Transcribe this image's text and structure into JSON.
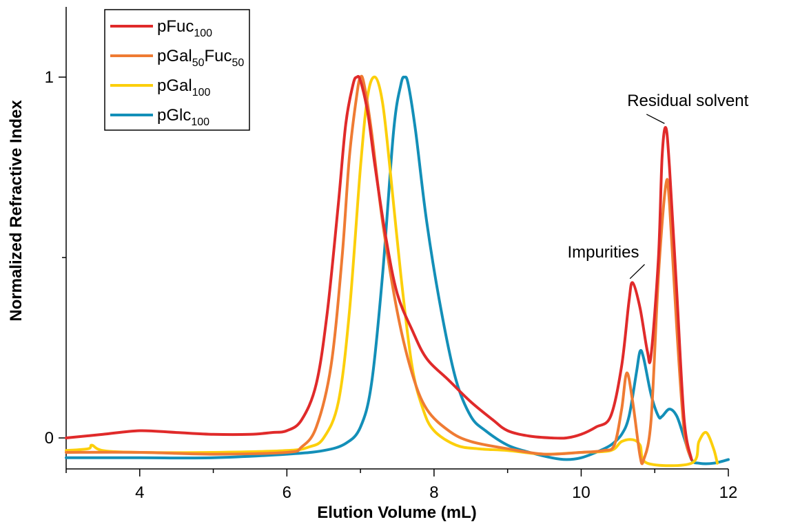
{
  "chart_data": {
    "type": "line",
    "title": "",
    "xlabel": "Elution Volume (mL)",
    "ylabel": "Normalized Refractive Index",
    "xlim": [
      3,
      12
    ],
    "ylim": [
      -0.07,
      1.2
    ],
    "xticks": [
      4,
      6,
      8,
      10,
      12
    ],
    "xtick_labels": [
      "4",
      "6",
      "8",
      "10",
      "12"
    ],
    "xminor": [
      3,
      5,
      7,
      9,
      11
    ],
    "yticks": [
      0,
      1
    ],
    "ytick_labels": [
      "0",
      "1"
    ],
    "yminor": [
      0.5
    ],
    "grid": false,
    "legend_position": "top-left",
    "series": [
      {
        "name": "pFuc100",
        "label_main": "pFuc",
        "label_sub": "100",
        "color": "#e02a2a",
        "points": [
          [
            3.0,
            0.0
          ],
          [
            3.5,
            0.01
          ],
          [
            4.0,
            0.02
          ],
          [
            4.5,
            0.015
          ],
          [
            5.0,
            0.01
          ],
          [
            5.5,
            0.01
          ],
          [
            5.8,
            0.015
          ],
          [
            6.0,
            0.02
          ],
          [
            6.2,
            0.05
          ],
          [
            6.4,
            0.15
          ],
          [
            6.55,
            0.35
          ],
          [
            6.7,
            0.65
          ],
          [
            6.8,
            0.87
          ],
          [
            6.9,
            0.98
          ],
          [
            6.95,
            1.0
          ],
          [
            7.0,
            0.99
          ],
          [
            7.1,
            0.9
          ],
          [
            7.2,
            0.75
          ],
          [
            7.35,
            0.55
          ],
          [
            7.5,
            0.4
          ],
          [
            7.7,
            0.3
          ],
          [
            7.9,
            0.22
          ],
          [
            8.2,
            0.16
          ],
          [
            8.5,
            0.1
          ],
          [
            8.8,
            0.05
          ],
          [
            9.0,
            0.02
          ],
          [
            9.3,
            0.005
          ],
          [
            9.6,
            0.0
          ],
          [
            9.8,
            0.0
          ],
          [
            10.0,
            0.01
          ],
          [
            10.2,
            0.03
          ],
          [
            10.4,
            0.06
          ],
          [
            10.55,
            0.2
          ],
          [
            10.65,
            0.38
          ],
          [
            10.7,
            0.43
          ],
          [
            10.8,
            0.36
          ],
          [
            10.9,
            0.24
          ],
          [
            10.95,
            0.23
          ],
          [
            11.05,
            0.5
          ],
          [
            11.1,
            0.78
          ],
          [
            11.15,
            0.86
          ],
          [
            11.2,
            0.75
          ],
          [
            11.3,
            0.4
          ],
          [
            11.4,
            0.05
          ],
          [
            11.5,
            -0.06
          ]
        ]
      },
      {
        "name": "pGal50Fuc50",
        "label_main": "pGal",
        "label_sub": "50",
        "label_main2": "Fuc",
        "label_sub2": "50",
        "color": "#ef7b33",
        "points": [
          [
            3.0,
            -0.04
          ],
          [
            4.0,
            -0.04
          ],
          [
            5.0,
            -0.045
          ],
          [
            6.0,
            -0.04
          ],
          [
            6.2,
            -0.025
          ],
          [
            6.4,
            0.03
          ],
          [
            6.6,
            0.2
          ],
          [
            6.75,
            0.5
          ],
          [
            6.85,
            0.78
          ],
          [
            6.95,
            0.95
          ],
          [
            7.0,
            1.0
          ],
          [
            7.05,
            0.98
          ],
          [
            7.15,
            0.85
          ],
          [
            7.3,
            0.6
          ],
          [
            7.5,
            0.35
          ],
          [
            7.7,
            0.18
          ],
          [
            7.9,
            0.08
          ],
          [
            8.2,
            0.02
          ],
          [
            8.5,
            -0.01
          ],
          [
            9.0,
            -0.03
          ],
          [
            9.5,
            -0.045
          ],
          [
            10.0,
            -0.04
          ],
          [
            10.3,
            -0.035
          ],
          [
            10.45,
            -0.02
          ],
          [
            10.55,
            0.08
          ],
          [
            10.62,
            0.18
          ],
          [
            10.7,
            0.1
          ],
          [
            10.8,
            -0.05
          ],
          [
            10.85,
            -0.06
          ],
          [
            10.95,
            0.05
          ],
          [
            11.05,
            0.45
          ],
          [
            11.15,
            0.7
          ],
          [
            11.2,
            0.65
          ],
          [
            11.3,
            0.3
          ],
          [
            11.4,
            0.02
          ],
          [
            11.5,
            -0.06
          ]
        ]
      },
      {
        "name": "pGal100",
        "label_main": "pGal",
        "label_sub": "100",
        "color": "#fccf0b",
        "points": [
          [
            3.0,
            -0.035
          ],
          [
            3.3,
            -0.03
          ],
          [
            3.35,
            -0.02
          ],
          [
            3.5,
            -0.035
          ],
          [
            4.0,
            -0.04
          ],
          [
            5.0,
            -0.04
          ],
          [
            6.0,
            -0.035
          ],
          [
            6.3,
            -0.025
          ],
          [
            6.5,
            0.0
          ],
          [
            6.7,
            0.1
          ],
          [
            6.85,
            0.35
          ],
          [
            7.0,
            0.75
          ],
          [
            7.1,
            0.95
          ],
          [
            7.2,
            1.0
          ],
          [
            7.3,
            0.93
          ],
          [
            7.4,
            0.75
          ],
          [
            7.55,
            0.45
          ],
          [
            7.7,
            0.2
          ],
          [
            7.85,
            0.08
          ],
          [
            8.0,
            0.02
          ],
          [
            8.3,
            -0.02
          ],
          [
            8.6,
            -0.03
          ],
          [
            9.0,
            -0.035
          ],
          [
            9.5,
            -0.045
          ],
          [
            10.0,
            -0.04
          ],
          [
            10.4,
            -0.035
          ],
          [
            10.55,
            -0.01
          ],
          [
            10.7,
            -0.005
          ],
          [
            10.8,
            -0.02
          ],
          [
            10.9,
            -0.07
          ],
          [
            11.5,
            -0.07
          ],
          [
            11.6,
            -0.01
          ],
          [
            11.7,
            0.015
          ],
          [
            11.8,
            -0.03
          ],
          [
            11.85,
            -0.07
          ]
        ]
      },
      {
        "name": "pGlc100",
        "label_main": "pGlc",
        "label_sub": "100",
        "color": "#138fb8",
        "points": [
          [
            3.0,
            -0.055
          ],
          [
            4.0,
            -0.055
          ],
          [
            5.0,
            -0.055
          ],
          [
            6.0,
            -0.045
          ],
          [
            6.5,
            -0.035
          ],
          [
            6.8,
            -0.015
          ],
          [
            7.0,
            0.03
          ],
          [
            7.15,
            0.15
          ],
          [
            7.3,
            0.45
          ],
          [
            7.45,
            0.85
          ],
          [
            7.55,
            0.98
          ],
          [
            7.6,
            1.0
          ],
          [
            7.65,
            0.98
          ],
          [
            7.75,
            0.85
          ],
          [
            7.9,
            0.6
          ],
          [
            8.1,
            0.35
          ],
          [
            8.3,
            0.16
          ],
          [
            8.5,
            0.06
          ],
          [
            8.7,
            0.02
          ],
          [
            9.0,
            -0.02
          ],
          [
            9.3,
            -0.04
          ],
          [
            9.6,
            -0.055
          ],
          [
            9.8,
            -0.06
          ],
          [
            10.0,
            -0.055
          ],
          [
            10.2,
            -0.04
          ],
          [
            10.4,
            -0.02
          ],
          [
            10.55,
            0.01
          ],
          [
            10.65,
            0.06
          ],
          [
            10.75,
            0.18
          ],
          [
            10.8,
            0.24
          ],
          [
            10.85,
            0.22
          ],
          [
            10.95,
            0.12
          ],
          [
            11.05,
            0.06
          ],
          [
            11.1,
            0.06
          ],
          [
            11.2,
            0.08
          ],
          [
            11.3,
            0.06
          ],
          [
            11.4,
            0.0
          ],
          [
            11.5,
            -0.06
          ],
          [
            11.6,
            -0.07
          ],
          [
            11.8,
            -0.07
          ],
          [
            12.0,
            -0.06
          ]
        ]
      }
    ],
    "annotations": [
      {
        "text": "Impurities",
        "x": 10.3,
        "y": 0.5,
        "arrow_to": [
          10.7,
          0.43
        ]
      },
      {
        "text": "Residual solvent",
        "x": 11.45,
        "y": 0.92,
        "arrow_to": [
          11.17,
          0.86
        ]
      }
    ]
  }
}
